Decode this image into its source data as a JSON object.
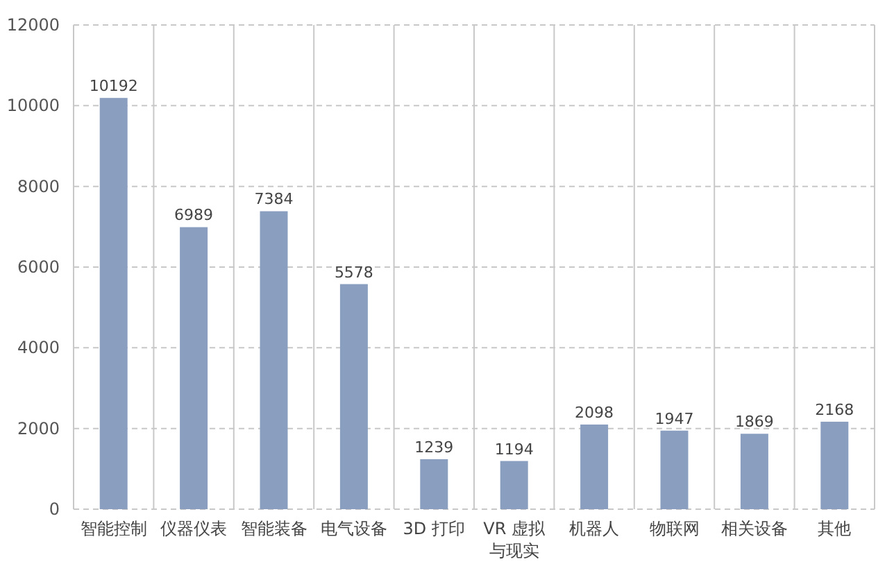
{
  "chart_data": {
    "type": "bar",
    "categories": [
      "智能控制",
      "仪器仪表",
      "智能装备",
      "电气设备",
      "3D 打印",
      "VR 虚拟与现实",
      "机器人",
      "物联网",
      "相关设备",
      "其他"
    ],
    "values": [
      10192,
      6989,
      7384,
      5578,
      1239,
      1194,
      2098,
      1947,
      1869,
      2168
    ],
    "color": "#8a9fc0",
    "ylim": [
      0,
      12000
    ],
    "yticks": [
      0,
      2000,
      4000,
      6000,
      8000,
      10000,
      12000
    ],
    "grid": true,
    "data_labels": true
  }
}
